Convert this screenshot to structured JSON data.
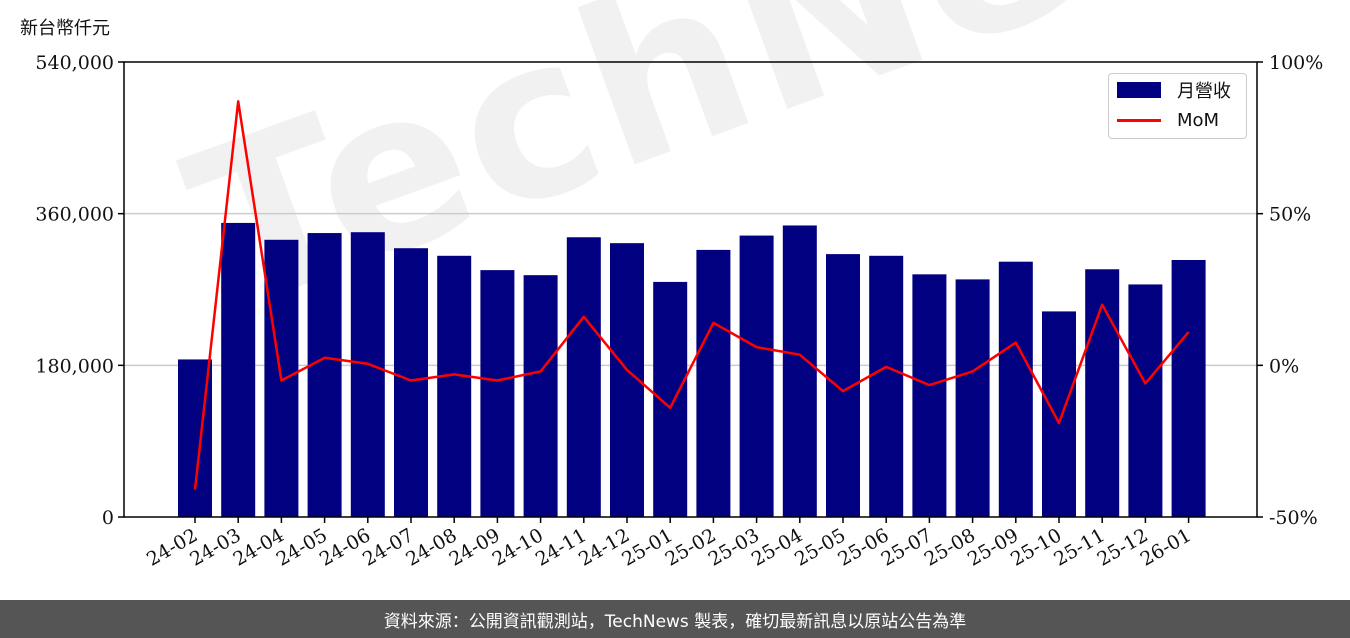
{
  "unit_label": "新台幣仟元",
  "footer_text": "資料來源：公開資訊觀測站，TechNews 製表，確切最新訊息以原站公告為準",
  "watermark": "TechNews",
  "colors": {
    "bar": "#000080",
    "line": "#ff0000",
    "grid": "#cccccc",
    "footer_bg": "#555555"
  },
  "chart_data": {
    "type": "bar",
    "categories": [
      "24-02",
      "24-03",
      "24-04",
      "24-05",
      "24-06",
      "24-07",
      "24-08",
      "24-09",
      "24-10",
      "24-11",
      "24-12",
      "25-01",
      "25-02",
      "25-03",
      "25-04",
      "25-05",
      "25-06",
      "25-07",
      "25-08",
      "25-09",
      "25-10",
      "25-11",
      "25-12",
      "26-01"
    ],
    "series": [
      {
        "name": "月營收",
        "type": "bar",
        "axis": "left",
        "values": [
          187000,
          349000,
          329000,
          337000,
          338000,
          319000,
          310000,
          293000,
          287000,
          332000,
          325000,
          279000,
          317000,
          334000,
          346000,
          312000,
          310000,
          288000,
          282000,
          303000,
          244000,
          294000,
          276000,
          305000
        ]
      },
      {
        "name": "MoM",
        "type": "line",
        "axis": "right",
        "values": [
          -41.0,
          87.0,
          -5.0,
          2.5,
          0.5,
          -5.0,
          -3.0,
          -5.0,
          -2.0,
          16.0,
          -1.5,
          -14.0,
          14.0,
          6.0,
          3.5,
          -8.5,
          -0.5,
          -6.5,
          -2.0,
          7.5,
          -19.0,
          20.0,
          -6.0,
          11.0
        ]
      }
    ],
    "y_left": {
      "min": 0,
      "max": 540000,
      "ticks": [
        0,
        180000,
        360000,
        540000
      ],
      "tick_labels": [
        "0",
        "180,000",
        "360,000",
        "540,000"
      ]
    },
    "y_right": {
      "min": -50,
      "max": 100,
      "ticks": [
        -50,
        0,
        50,
        100
      ],
      "tick_labels": [
        "-50%",
        "0%",
        "50%",
        "100%"
      ]
    },
    "grid": "horizontal",
    "legend_position": "top-right",
    "title": "",
    "xlabel": "",
    "ylabel": "新台幣仟元"
  }
}
